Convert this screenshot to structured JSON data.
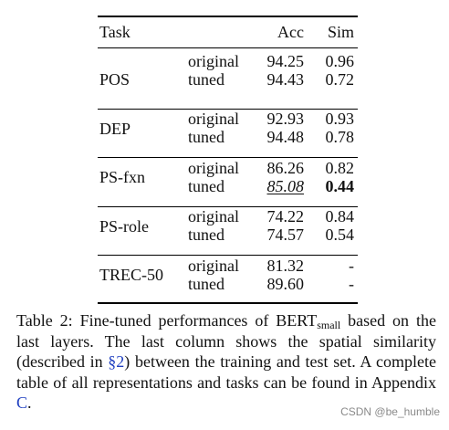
{
  "table": {
    "headers": {
      "task": "Task",
      "acc": "Acc",
      "sim": "Sim"
    },
    "groups": [
      {
        "task": "POS",
        "rows": [
          {
            "setting": "original",
            "acc": "94.25",
            "sim": "0.96"
          },
          {
            "setting": "tuned",
            "acc": "94.43",
            "sim": "0.72"
          }
        ]
      },
      {
        "task": "DEP",
        "rows": [
          {
            "setting": "original",
            "acc": "92.93",
            "sim": "0.93"
          },
          {
            "setting": "tuned",
            "acc": "94.48",
            "sim": "0.78"
          }
        ]
      },
      {
        "task": "PS-fxn",
        "rows": [
          {
            "setting": "original",
            "acc": "86.26",
            "sim": "0.82"
          },
          {
            "setting": "tuned",
            "acc": "85.08",
            "sim": "0.44",
            "acc_style": "underline-italic",
            "sim_style": "bold"
          }
        ]
      },
      {
        "task": "PS-role",
        "rows": [
          {
            "setting": "original",
            "acc": "74.22",
            "sim": "0.84"
          },
          {
            "setting": "tuned",
            "acc": "74.57",
            "sim": "0.54"
          }
        ]
      },
      {
        "task": "TREC-50",
        "rows": [
          {
            "setting": "original",
            "acc": "81.32",
            "sim": "-"
          },
          {
            "setting": "tuned",
            "acc": "89.60",
            "sim": "-"
          }
        ]
      }
    ]
  },
  "caption": {
    "part1": "Table 2: Fine-tuned performances of BERT",
    "subscript": "small",
    "part2": " based on the last layers. The last column shows the spatial similarity (described in ",
    "ref_section": "§2",
    "part3": ") between the training and test set. A complete table of all representations and tasks can be found in Appendix ",
    "ref_appendix": "C",
    "part4": "."
  },
  "watermark": "CSDN @be_humble"
}
